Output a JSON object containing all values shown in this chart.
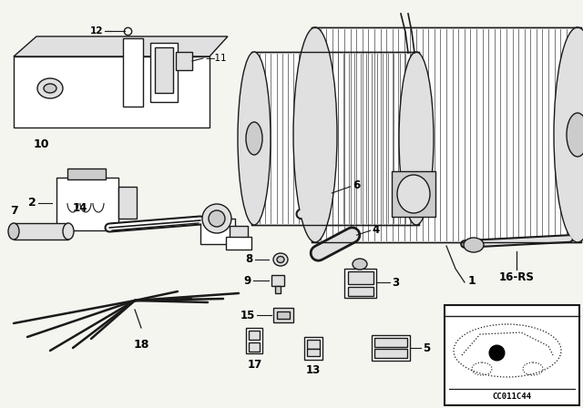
{
  "bg_color": "#f5f5f0",
  "line_color": "#1a1a1a",
  "diagram_code": "CC011C44",
  "fig_w": 6.4,
  "fig_h": 4.48,
  "dpi": 100
}
